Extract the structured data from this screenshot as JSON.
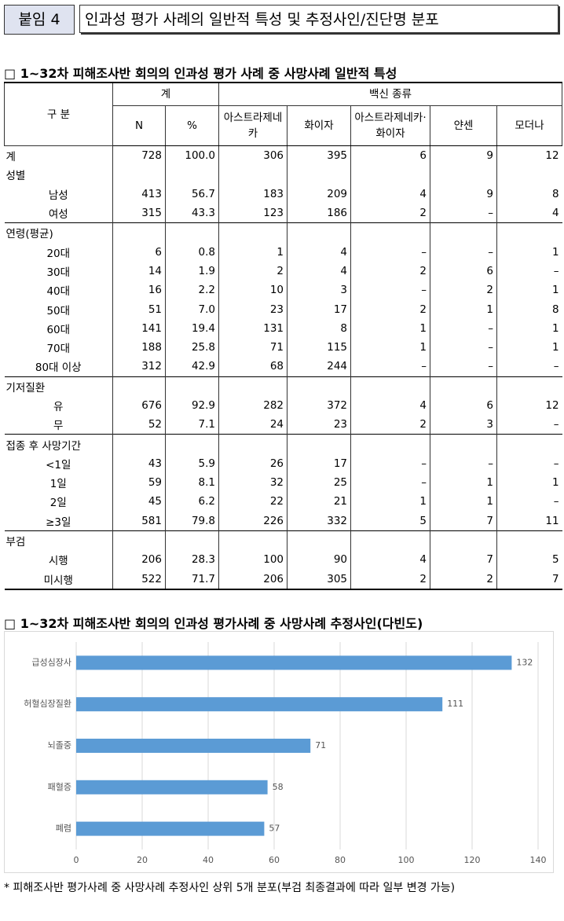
{
  "header": {
    "tag": "붙임 4",
    "title": "인과성 평가 사례의 일반적 특성 및 추정사인/진단명 분포"
  },
  "section1_title": "□ 1~32차 피해조사반 회의의 인과성 평가 사례 중 사망사례 일반적 특성",
  "table": {
    "head": {
      "category": "구 분",
      "total": "계",
      "vaccine": "백신 종류",
      "columns": [
        "N",
        "%",
        "아스트라제네카",
        "화이자",
        "아스트라제네카·화이자",
        "얀센",
        "모더나"
      ]
    },
    "total": [
      "계",
      "728",
      "100.0",
      "306",
      "395",
      "6",
      "9",
      "12"
    ],
    "groups": [
      {
        "label": "성별",
        "rows": [
          [
            "남성",
            "413",
            "56.7",
            "183",
            "209",
            "4",
            "9",
            "8"
          ],
          [
            "여성",
            "315",
            "43.3",
            "123",
            "186",
            "2",
            "–",
            "4"
          ]
        ]
      },
      {
        "label": "연령(평균)",
        "rows": [
          [
            "20대",
            "6",
            "0.8",
            "1",
            "4",
            "–",
            "–",
            "1"
          ],
          [
            "30대",
            "14",
            "1.9",
            "2",
            "4",
            "2",
            "6",
            "–"
          ],
          [
            "40대",
            "16",
            "2.2",
            "10",
            "3",
            "–",
            "2",
            "1"
          ],
          [
            "50대",
            "51",
            "7.0",
            "23",
            "17",
            "2",
            "1",
            "8"
          ],
          [
            "60대",
            "141",
            "19.4",
            "131",
            "8",
            "1",
            "–",
            "1"
          ],
          [
            "70대",
            "188",
            "25.8",
            "71",
            "115",
            "1",
            "–",
            "1"
          ],
          [
            "80대 이상",
            "312",
            "42.9",
            "68",
            "244",
            "–",
            "–",
            "–"
          ]
        ]
      },
      {
        "label": "기저질환",
        "rows": [
          [
            "유",
            "676",
            "92.9",
            "282",
            "372",
            "4",
            "6",
            "12"
          ],
          [
            "무",
            "52",
            "7.1",
            "24",
            "23",
            "2",
            "3",
            "–"
          ]
        ]
      },
      {
        "label": "접종 후 사망기간",
        "rows": [
          [
            "<1일",
            "43",
            "5.9",
            "26",
            "17",
            "–",
            "–",
            "–"
          ],
          [
            "1일",
            "59",
            "8.1",
            "32",
            "25",
            "–",
            "1",
            "1"
          ],
          [
            "2일",
            "45",
            "6.2",
            "22",
            "21",
            "1",
            "1",
            "–"
          ],
          [
            "≥3일",
            "581",
            "79.8",
            "226",
            "332",
            "5",
            "7",
            "11"
          ]
        ]
      },
      {
        "label": "부검",
        "rows": [
          [
            "시행",
            "206",
            "28.3",
            "100",
            "90",
            "4",
            "7",
            "5"
          ],
          [
            "미시행",
            "522",
            "71.7",
            "206",
            "305",
            "2",
            "2",
            "7"
          ]
        ]
      }
    ]
  },
  "section2_title": "□ 1~32차 피해조사반 회의의 인과성 평가사례 중 사망사례 추정사인(다빈도)",
  "chart_data": {
    "type": "bar",
    "orientation": "horizontal",
    "categories": [
      "급성심장사",
      "허혈심장질환",
      "뇌졸중",
      "패혈증",
      "폐렴"
    ],
    "values": [
      132,
      111,
      71,
      58,
      57
    ],
    "color": "#5b9bd5",
    "xlim": [
      0,
      140
    ],
    "xticks": [
      0,
      20,
      40,
      60,
      80,
      100,
      120,
      140
    ],
    "grid": true
  },
  "footnote": "* 피해조사반 평가사례 중 사망사례 추정사인 상위 5개 분포(부검 최종결과에 따라 일부 변경 가능)"
}
